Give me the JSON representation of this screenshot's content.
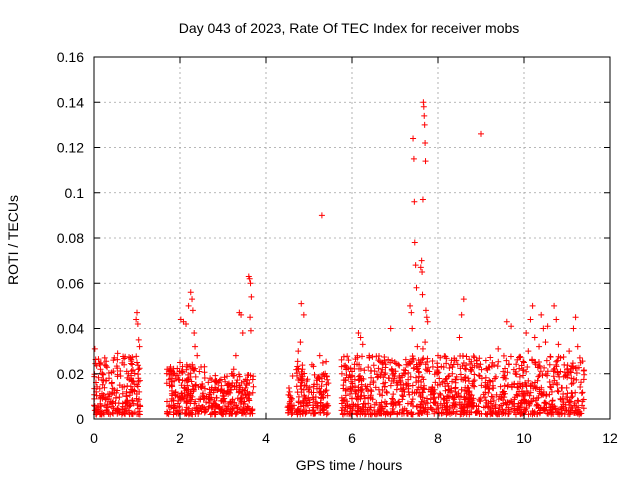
{
  "chart_data": {
    "type": "scatter",
    "title": "Day 043 of 2023, Rate Of TEC Index for receiver mobs",
    "xlabel": "GPS time / hours",
    "ylabel": "ROTI / TECUs",
    "xlim": [
      0,
      12
    ],
    "ylim": [
      0,
      0.16
    ],
    "x_ticks": [
      0,
      2,
      4,
      6,
      8,
      10,
      12
    ],
    "x_tick_labels": [
      "0",
      "2",
      "4",
      "6",
      "8",
      "10",
      "12"
    ],
    "y_ticks": [
      0,
      0.02,
      0.04,
      0.06,
      0.08,
      0.1,
      0.12,
      0.14,
      0.16
    ],
    "y_tick_labels": [
      "0",
      "0.02",
      "0.04",
      "0.06",
      "0.08",
      "0.1",
      "0.12",
      "0.14",
      "0.16"
    ],
    "grid": true,
    "marker": "+",
    "color": "#ff0000",
    "series": [
      {
        "name": "ROTI",
        "points": [
          [
            0.02,
            0.031
          ],
          [
            0.05,
            0.012
          ],
          [
            0.1,
            0.005
          ],
          [
            0.15,
            0.022
          ],
          [
            0.2,
            0.009
          ],
          [
            0.25,
            0.027
          ],
          [
            0.3,
            0.004
          ],
          [
            0.35,
            0.018
          ],
          [
            0.4,
            0.011
          ],
          [
            0.45,
            0.026
          ],
          [
            0.5,
            0.007
          ],
          [
            0.55,
            0.029
          ],
          [
            0.6,
            0.015
          ],
          [
            0.65,
            0.003
          ],
          [
            0.7,
            0.024
          ],
          [
            0.75,
            0.01
          ],
          [
            0.8,
            0.02
          ],
          [
            0.85,
            0.006
          ],
          [
            0.9,
            0.013
          ],
          [
            0.95,
            0.003
          ],
          [
            0.98,
            0.044
          ],
          [
            1.0,
            0.047
          ],
          [
            1.02,
            0.042
          ],
          [
            1.04,
            0.035
          ],
          [
            1.06,
            0.032
          ],
          [
            1.0,
            0.025
          ],
          [
            1.03,
            0.018
          ],
          [
            1.05,
            0.012
          ],
          [
            1.07,
            0.006
          ],
          [
            0.99,
            0.009
          ],
          [
            1.7,
            0.022
          ],
          [
            1.75,
            0.006
          ],
          [
            1.8,
            0.015
          ],
          [
            1.85,
            0.003
          ],
          [
            1.9,
            0.018
          ],
          [
            1.95,
            0.01
          ],
          [
            2.0,
            0.025
          ],
          [
            2.05,
            0.004
          ],
          [
            2.1,
            0.014
          ],
          [
            2.15,
            0.008
          ],
          [
            2.02,
            0.044
          ],
          [
            2.08,
            0.043
          ],
          [
            2.14,
            0.042
          ],
          [
            2.2,
            0.05
          ],
          [
            2.25,
            0.056
          ],
          [
            2.28,
            0.053
          ],
          [
            2.3,
            0.048
          ],
          [
            2.33,
            0.038
          ],
          [
            2.35,
            0.032
          ],
          [
            2.4,
            0.028
          ],
          [
            2.45,
            0.021
          ],
          [
            2.5,
            0.014
          ],
          [
            2.55,
            0.009
          ],
          [
            2.6,
            0.004
          ],
          [
            2.7,
            0.018
          ],
          [
            2.8,
            0.008
          ],
          [
            2.9,
            0.016
          ],
          [
            3.0,
            0.004
          ],
          [
            3.1,
            0.012
          ],
          [
            3.2,
            0.02
          ],
          [
            3.3,
            0.006
          ],
          [
            3.4,
            0.014
          ],
          [
            3.5,
            0.003
          ],
          [
            3.6,
            0.009
          ],
          [
            3.38,
            0.047
          ],
          [
            3.42,
            0.046
          ],
          [
            3.46,
            0.038
          ],
          [
            3.3,
            0.028
          ],
          [
            3.25,
            0.022
          ],
          [
            3.6,
            0.063
          ],
          [
            3.62,
            0.062
          ],
          [
            3.64,
            0.06
          ],
          [
            3.66,
            0.054
          ],
          [
            3.63,
            0.045
          ],
          [
            3.65,
            0.039
          ],
          [
            4.55,
            0.012
          ],
          [
            4.6,
            0.009
          ],
          [
            4.65,
            0.006
          ],
          [
            4.58,
            0.004
          ],
          [
            4.62,
            0.019
          ],
          [
            4.75,
            0.03
          ],
          [
            4.8,
            0.034
          ],
          [
            4.85,
            0.022
          ],
          [
            4.9,
            0.015
          ],
          [
            4.95,
            0.008
          ],
          [
            4.82,
            0.051
          ],
          [
            4.88,
            0.046
          ],
          [
            5.0,
            0.012
          ],
          [
            5.1,
            0.004
          ],
          [
            5.2,
            0.018
          ],
          [
            5.25,
            0.028
          ],
          [
            5.3,
            0.011
          ],
          [
            5.4,
            0.006
          ],
          [
            5.3,
            0.09
          ],
          [
            5.8,
            0.015
          ],
          [
            5.9,
            0.006
          ],
          [
            6.0,
            0.021
          ],
          [
            6.1,
            0.012
          ],
          [
            6.15,
            0.038
          ],
          [
            6.2,
            0.036
          ],
          [
            6.25,
            0.033
          ],
          [
            6.3,
            0.009
          ],
          [
            6.4,
            0.028
          ],
          [
            6.5,
            0.016
          ],
          [
            6.6,
            0.004
          ],
          [
            6.7,
            0.025
          ],
          [
            6.8,
            0.012
          ],
          [
            6.9,
            0.04
          ],
          [
            7.0,
            0.007
          ],
          [
            7.1,
            0.019
          ],
          [
            7.2,
            0.013
          ],
          [
            7.3,
            0.024
          ],
          [
            7.35,
            0.05
          ],
          [
            7.38,
            0.047
          ],
          [
            7.4,
            0.04
          ],
          [
            7.42,
            0.124
          ],
          [
            7.44,
            0.115
          ],
          [
            7.45,
            0.096
          ],
          [
            7.46,
            0.078
          ],
          [
            7.48,
            0.068
          ],
          [
            7.5,
            0.058
          ],
          [
            7.52,
            0.032
          ],
          [
            7.55,
            0.026
          ],
          [
            7.6,
            0.067
          ],
          [
            7.62,
            0.07
          ],
          [
            7.63,
            0.065
          ],
          [
            7.64,
            0.055
          ],
          [
            7.65,
            0.097
          ],
          [
            7.66,
            0.14
          ],
          [
            7.67,
            0.138
          ],
          [
            7.68,
            0.134
          ],
          [
            7.69,
            0.13
          ],
          [
            7.7,
            0.122
          ],
          [
            7.71,
            0.114
          ],
          [
            7.72,
            0.048
          ],
          [
            7.74,
            0.045
          ],
          [
            7.76,
            0.043
          ],
          [
            7.7,
            0.034
          ],
          [
            7.65,
            0.031
          ],
          [
            7.8,
            0.021
          ],
          [
            7.9,
            0.009
          ],
          [
            8.0,
            0.028
          ],
          [
            8.1,
            0.016
          ],
          [
            8.2,
            0.004
          ],
          [
            8.3,
            0.024
          ],
          [
            8.4,
            0.012
          ],
          [
            8.5,
            0.036
          ],
          [
            8.55,
            0.046
          ],
          [
            8.6,
            0.053
          ],
          [
            8.7,
            0.018
          ],
          [
            8.8,
            0.006
          ],
          [
            8.9,
            0.026
          ],
          [
            9.0,
            0.126
          ],
          [
            9.1,
            0.014
          ],
          [
            9.2,
            0.023
          ],
          [
            9.3,
            0.008
          ],
          [
            9.4,
            0.031
          ],
          [
            9.5,
            0.012
          ],
          [
            9.6,
            0.043
          ],
          [
            9.7,
            0.041
          ],
          [
            9.8,
            0.02
          ],
          [
            9.9,
            0.005
          ],
          [
            10.0,
            0.025
          ],
          [
            10.05,
            0.038
          ],
          [
            10.1,
            0.03
          ],
          [
            10.15,
            0.044
          ],
          [
            10.2,
            0.05
          ],
          [
            10.25,
            0.036
          ],
          [
            10.3,
            0.014
          ],
          [
            10.35,
            0.032
          ],
          [
            10.4,
            0.046
          ],
          [
            10.45,
            0.04
          ],
          [
            10.5,
            0.034
          ],
          [
            10.55,
            0.041
          ],
          [
            10.6,
            0.024
          ],
          [
            10.65,
            0.012
          ],
          [
            10.7,
            0.05
          ],
          [
            10.75,
            0.044
          ],
          [
            10.8,
            0.033
          ],
          [
            10.85,
            0.027
          ],
          [
            10.9,
            0.009
          ],
          [
            11.0,
            0.022
          ],
          [
            11.05,
            0.03
          ],
          [
            11.1,
            0.018
          ],
          [
            11.15,
            0.04
          ],
          [
            11.2,
            0.045
          ],
          [
            11.25,
            0.032
          ],
          [
            11.3,
            0.027
          ],
          [
            11.35,
            0.006
          ]
        ]
      }
    ]
  }
}
